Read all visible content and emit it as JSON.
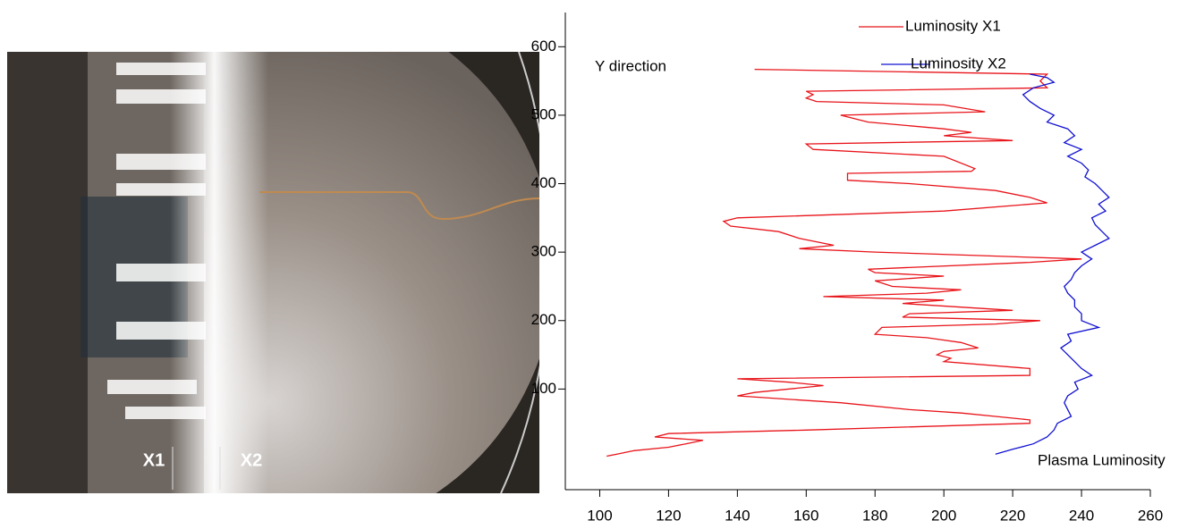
{
  "image": {
    "labels": [
      "X1",
      "X2"
    ]
  },
  "chart_data": {
    "type": "line",
    "title": "Plasma Luminosity",
    "ylabel": "Y direction",
    "xlim": [
      90,
      260
    ],
    "xticks": [
      100,
      120,
      140,
      160,
      180,
      200,
      220,
      240,
      260
    ],
    "ylim": [
      -47,
      650
    ],
    "yticks": [
      100,
      200,
      300,
      400,
      500,
      600
    ],
    "legend": "top",
    "series": [
      {
        "name": "Luminosity X1",
        "color": "#e8141a",
        "y": [
          567,
          560,
          550,
          540,
          535,
          530,
          525,
          520,
          515,
          505,
          500,
          490,
          480,
          475,
          470,
          463,
          458,
          450,
          440,
          422,
          418,
          415,
          405,
          400,
          390,
          380,
          372,
          360,
          350,
          345,
          338,
          330,
          320,
          310,
          305,
          300,
          290,
          285,
          275,
          270,
          265,
          258,
          250,
          245,
          240,
          235,
          230,
          225,
          215,
          210,
          205,
          200,
          195,
          190,
          180,
          175,
          168,
          160,
          155,
          150,
          145,
          140,
          130,
          120,
          115,
          110,
          105,
          95,
          90,
          80,
          70,
          65,
          60,
          55,
          50,
          40,
          35,
          30,
          25,
          20,
          15,
          10,
          5,
          2
        ],
        "values": [
          145,
          230,
          228,
          230,
          160,
          162,
          160,
          163,
          200,
          212,
          170,
          178,
          200,
          208,
          200,
          220,
          160,
          162,
          200,
          209,
          208,
          172,
          172,
          190,
          215,
          225,
          230,
          200,
          140,
          136,
          138,
          152,
          158,
          168,
          158,
          180,
          240,
          225,
          178,
          180,
          200,
          180,
          185,
          205,
          195,
          165,
          200,
          188,
          220,
          190,
          188,
          228,
          215,
          182,
          180,
          195,
          205,
          210,
          200,
          198,
          202,
          200,
          225,
          225,
          140,
          155,
          165,
          145,
          140,
          170,
          190,
          205,
          215,
          225,
          225,
          160,
          120,
          116,
          130,
          125,
          120,
          110,
          105,
          102
        ]
      },
      {
        "name": "Luminosity X2",
        "color": "#1010d0",
        "y": [
          560,
          555,
          548,
          540,
          530,
          520,
          510,
          500,
          490,
          480,
          470,
          460,
          450,
          440,
          430,
          420,
          410,
          400,
          390,
          380,
          370,
          360,
          350,
          340,
          330,
          320,
          310,
          300,
          290,
          280,
          270,
          260,
          250,
          240,
          230,
          220,
          210,
          200,
          190,
          180,
          170,
          160,
          150,
          140,
          130,
          120,
          110,
          100,
          90,
          80,
          70,
          60,
          50,
          40,
          30,
          20,
          12,
          5
        ],
        "values": [
          225,
          230,
          232,
          226,
          223,
          225,
          228,
          232,
          230,
          236,
          238,
          235,
          240,
          236,
          240,
          242,
          241,
          244,
          246,
          248,
          245,
          247,
          243,
          244,
          246,
          248,
          244,
          240,
          243,
          240,
          238,
          237,
          235,
          236,
          238,
          238,
          240,
          240,
          245,
          236,
          237,
          234,
          236,
          238,
          240,
          243,
          238,
          239,
          236,
          235,
          236,
          237,
          233,
          232,
          230,
          226,
          220,
          215
        ]
      }
    ]
  }
}
